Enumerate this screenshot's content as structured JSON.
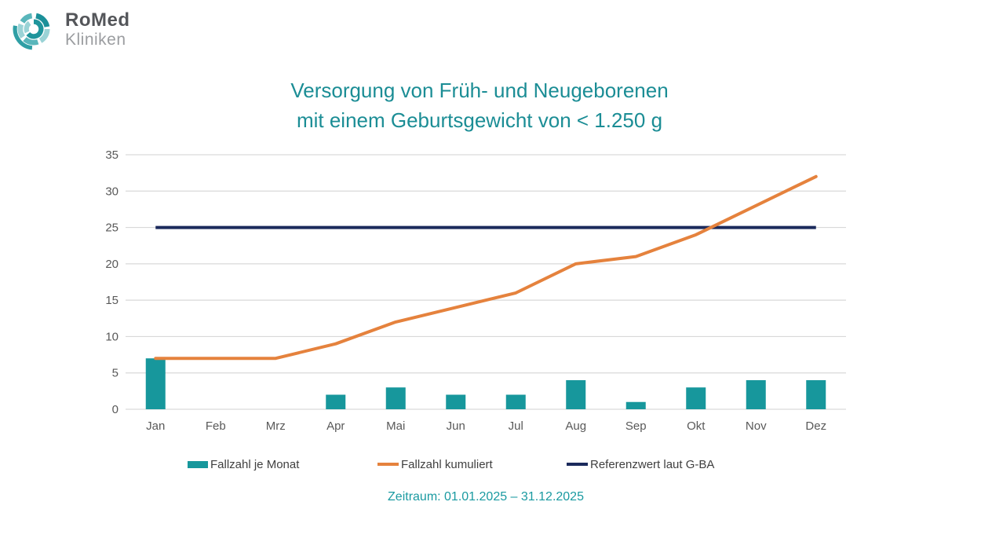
{
  "logo": {
    "brand": "RoMed",
    "subtitle": "Kliniken"
  },
  "title": {
    "line1": "Versorgung von Früh- und Neugeborenen",
    "line2": "mit einem Geburtsgewicht von < 1.250 g"
  },
  "footer": {
    "zeitraum": "Zeitraum: 01.01.2025 – 31.12.2025"
  },
  "colors": {
    "bar": "#17979c",
    "line": "#e5823d",
    "reference": "#1b2a5c",
    "grid": "#d9d9d9",
    "axis_text": "#595959",
    "legend_text": "#404040",
    "title": "#1b8d95",
    "footer": "#1a9aa1",
    "logo_brand": "#54565a",
    "logo_sub": "#9b9da0",
    "logo_teal_dark": "#1b9099",
    "logo_teal_mid": "#59b6bb",
    "logo_teal_light": "#9ad3d6"
  },
  "chart_data": {
    "type": "bar+line",
    "title": "Versorgung von Früh- und Neugeborenen mit einem Geburtsgewicht von < 1.250 g",
    "xlabel": "",
    "ylabel": "",
    "categories": [
      "Jan",
      "Feb",
      "Mrz",
      "Apr",
      "Mai",
      "Jun",
      "Jul",
      "Aug",
      "Sep",
      "Okt",
      "Nov",
      "Dez"
    ],
    "series": [
      {
        "name": "Fallzahl je Monat",
        "type": "bar",
        "color_key": "bar",
        "values": [
          7,
          0,
          0,
          2,
          3,
          2,
          2,
          4,
          1,
          3,
          4,
          4
        ]
      },
      {
        "name": "Fallzahl kumuliert",
        "type": "line",
        "color_key": "line",
        "linecap": "round",
        "values": [
          7,
          7,
          7,
          9,
          12,
          14,
          16,
          20,
          21,
          24,
          28,
          32
        ]
      },
      {
        "name": "Referenzwert laut G-BA",
        "type": "line",
        "color_key": "reference",
        "linecap": "butt",
        "values": [
          25,
          25,
          25,
          25,
          25,
          25,
          25,
          25,
          25,
          25,
          25,
          25
        ]
      }
    ],
    "draw_order": [
      0,
      2,
      1
    ],
    "ylim": [
      0,
      35
    ],
    "y_ticks": [
      0,
      5,
      10,
      15,
      20,
      25,
      30,
      35
    ],
    "grid": true,
    "legend_position": "bottom",
    "annotation": "Zeitraum: 01.01.2025 – 31.12.2025"
  }
}
